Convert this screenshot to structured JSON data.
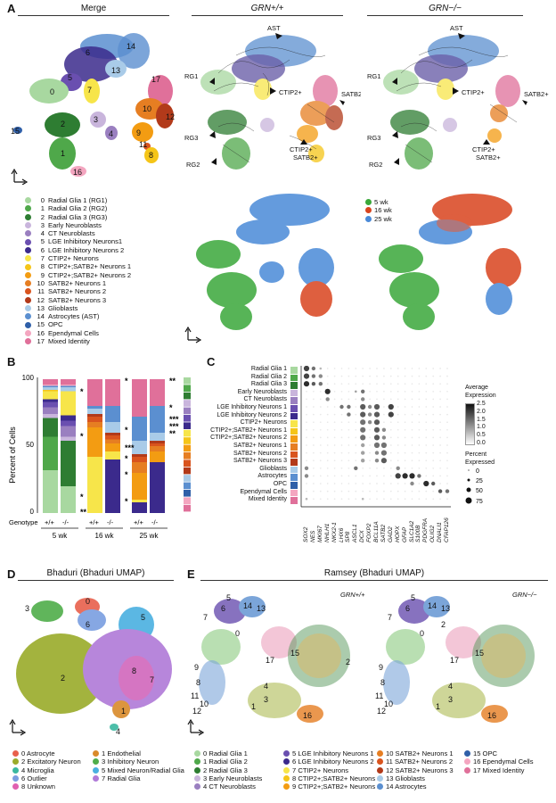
{
  "panels": {
    "A": {
      "letter": "A",
      "titles": [
        "Merge",
        "GRN+/+",
        "GRN−/−"
      ],
      "cluster_legend": [
        {
          "n": "0",
          "label": "Radial Glia 1 (RG1)",
          "color": "#a8d8a0"
        },
        {
          "n": "1",
          "label": "Radial Glia 2 (RG2)",
          "color": "#4fa84a"
        },
        {
          "n": "2",
          "label": "Radial Glia 3 (RG3)",
          "color": "#2e7d32"
        },
        {
          "n": "3",
          "label": "Early Neuroblasts",
          "color": "#c9b5dc"
        },
        {
          "n": "4",
          "label": "CT Neuroblasts",
          "color": "#9a7fc0"
        },
        {
          "n": "5",
          "label": "LGE Inhibitory Neurons1",
          "color": "#6a4fb0"
        },
        {
          "n": "6",
          "label": "LGE Inhibitory Neurons 2",
          "color": "#3b2a8c"
        },
        {
          "n": "7",
          "label": "CTIP2+ Neurons",
          "color": "#f7e54a"
        },
        {
          "n": "8",
          "label": "CTIP2+;SATB2+ Neurons 1",
          "color": "#f5c518"
        },
        {
          "n": "9",
          "label": "CTIP2+;SATB2+ Neurons 2",
          "color": "#f39c12"
        },
        {
          "n": "10",
          "label": "SATB2+ Neurons 1",
          "color": "#e67e22"
        },
        {
          "n": "11",
          "label": "SATB2+ Neurons 2",
          "color": "#d9541e"
        },
        {
          "n": "12",
          "label": "SATB2+ Neurons 3",
          "color": "#b23a1a"
        },
        {
          "n": "13",
          "label": "Glioblasts",
          "color": "#a9cbe8"
        },
        {
          "n": "14",
          "label": "Astrocytes (AST)",
          "color": "#5b8fd0"
        },
        {
          "n": "15",
          "label": "OPC",
          "color": "#2f5fa8"
        },
        {
          "n": "16",
          "label": "Ependymal Cells",
          "color": "#f4a6c0"
        },
        {
          "n": "17",
          "label": "Mixed Identity",
          "color": "#e0709a"
        }
      ],
      "merge_numbers": [
        "14",
        "6",
        "13",
        "5",
        "0",
        "7",
        "10",
        "17",
        "2",
        "3",
        "9",
        "12",
        "4",
        "15",
        "11",
        "8",
        "1",
        "16"
      ],
      "annotations": [
        "AST",
        "RG1",
        "CTIP2+",
        "SATB2+",
        "RG3",
        "CTIP2+",
        "SATB2+",
        "RG2"
      ],
      "age_legend": [
        {
          "label": "5 wk",
          "color": "#3aa83a"
        },
        {
          "label": "16 wk",
          "color": "#d9441e"
        },
        {
          "label": "25 wk",
          "color": "#4a8ad8"
        }
      ]
    },
    "B": {
      "letter": "B",
      "ylabel": "Percent of Cells",
      "yticks": [
        "100",
        "50",
        "0"
      ],
      "genotype_label": "Genotype",
      "genotypes": [
        "+/+",
        "-/-",
        "+/+",
        "-/-",
        "+/+",
        "-/-"
      ],
      "ages": [
        "5 wk",
        "16 wk",
        "25 wk"
      ],
      "stars": [
        "*",
        "*",
        "*",
        "**",
        "*",
        "*",
        "***",
        "*",
        "*",
        "*",
        "*",
        "**",
        "*",
        "***",
        "***",
        "**"
      ]
    },
    "C": {
      "letter": "C",
      "rows": [
        "Radial Glia 1",
        "Radial Glia 2",
        "Radial Glia 3",
        "Early Neuroblasts",
        "CT Neuroblasts",
        "LGE Inhibitory Neurons 1",
        "LGE Inhibitory Neurons 2",
        "CTIP2+ Neurons",
        "CTIP2+;SATB2+ Neurons 1",
        "CTIP2+;SATB2+ Neurons 2",
        "SATB2+ Neurons 1",
        "SATB2+ Neurons 2",
        "SATB2+ Neurons 3",
        "Glioblasts",
        "Astrocytes",
        "OPC",
        "Ependymal Cells",
        "Mixed Identity"
      ],
      "genes": [
        "SOX2",
        "NES",
        "MKI67",
        "NHLH1",
        "NKX2-1",
        "LHX6",
        "SP8",
        "ASCL1",
        "DCX",
        "FOXP2",
        "BCL11A",
        "SATB2",
        "GAD2",
        "HOPX",
        "GFAP",
        "SLC1A2",
        "S100B",
        "PDGFRA",
        "OLIG2",
        "DNALI1",
        "CFAP126"
      ],
      "avg_title": [
        "Average",
        "Expression"
      ],
      "avg_ticks": [
        "2.5",
        "2.0",
        "1.5",
        "1.0",
        "0.5",
        "0.0"
      ],
      "pct_title": [
        "Percent",
        "Expressed"
      ],
      "pct_ticks": [
        "0",
        "25",
        "50",
        "75"
      ]
    },
    "D": {
      "letter": "D",
      "title": "Bhaduri (Bhaduri UMAP)",
      "numbers": [
        "3",
        "0",
        "6",
        "5",
        "8",
        "7",
        "2",
        "1",
        "4"
      ],
      "legend": [
        {
          "label": "0 Astrocyte",
          "color": "#e8604c"
        },
        {
          "label": "1 Endothelial",
          "color": "#d98a2a"
        },
        {
          "label": "2 Excitatory Neuron",
          "color": "#9aab2a"
        },
        {
          "label": "3 Inhibitory Neuron",
          "color": "#4fae4a"
        },
        {
          "label": "4 Microglia",
          "color": "#3ab8a0"
        },
        {
          "label": "5 Mixed Neuron/Radial Glia",
          "color": "#4ab0e0"
        },
        {
          "label": "6 Outlier",
          "color": "#7a9ee0"
        },
        {
          "label": "7 Radial Glia",
          "color": "#b07ad8"
        },
        {
          "label": "8 Unknown",
          "color": "#e060b0"
        }
      ]
    },
    "E": {
      "letter": "E",
      "title": "Ramsey (Bhaduri UMAP)",
      "subtitles": [
        "GRN+/+",
        "GRN−/−"
      ],
      "numbers": [
        "5",
        "7",
        "6",
        "14",
        "13",
        "0",
        "17",
        "2",
        "15",
        "9",
        "8",
        "11",
        "10",
        "12",
        "4",
        "3",
        "1",
        "16"
      ],
      "legend": [
        {
          "label": "0  Radial Glia 1",
          "color": "#a8d8a0"
        },
        {
          "label": "1  Radial Glia 2",
          "color": "#4fa84a"
        },
        {
          "label": "2  Radial Glia 3",
          "color": "#2e7d32"
        },
        {
          "label": "3  Early Neuroblasts",
          "color": "#c9b5dc"
        },
        {
          "label": "4  CT Neuroblasts",
          "color": "#9a7fc0"
        },
        {
          "label": "5  LGE Inhibitory Neurons 1",
          "color": "#6a4fb0"
        },
        {
          "label": "6  LGE Inhibitory Neurons 2",
          "color": "#3b2a8c"
        },
        {
          "label": "7  CTIP2+ Neurons",
          "color": "#f7e54a"
        },
        {
          "label": "8  CTIP2+;SATB2+ Neurons 1",
          "color": "#f5c518"
        },
        {
          "label": "9  CTIP2+;SATB2+ Neurons 2",
          "color": "#f39c12"
        },
        {
          "label": "10 SATB2+ Neurons 1",
          "color": "#e67e22"
        },
        {
          "label": "11 SATB2+ Neurons 2",
          "color": "#d9541e"
        },
        {
          "label": "12 SATB2+ Neurons 3",
          "color": "#b23a1a"
        },
        {
          "label": "13 Glioblasts",
          "color": "#a9cbe8"
        },
        {
          "label": "14 Astrocytes",
          "color": "#5b8fd0"
        },
        {
          "label": "15 OPC",
          "color": "#2f5fa8"
        },
        {
          "label": "16 Ependymal Cells",
          "color": "#f4a6c0"
        },
        {
          "label": "17 Mixed Identity",
          "color": "#e0709a"
        }
      ]
    }
  }
}
